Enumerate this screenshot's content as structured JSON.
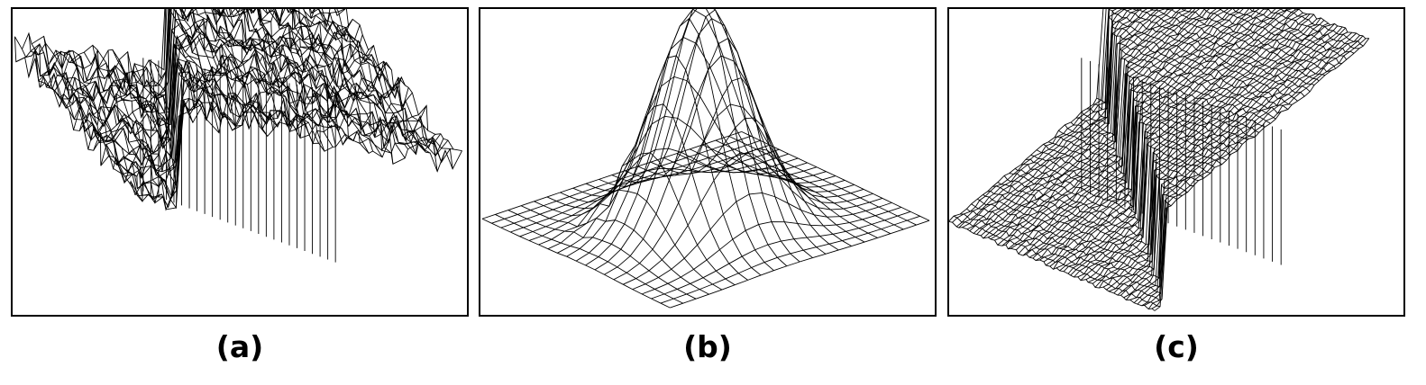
{
  "panels": [
    {
      "caption": "(a)",
      "surface": "noisy-step",
      "wire_color": "#000000"
    },
    {
      "caption": "(b)",
      "surface": "gaussian-peak",
      "wire_color": "#000000"
    },
    {
      "caption": "(c)",
      "surface": "smoothed-step",
      "wire_color": "#000000"
    }
  ]
}
